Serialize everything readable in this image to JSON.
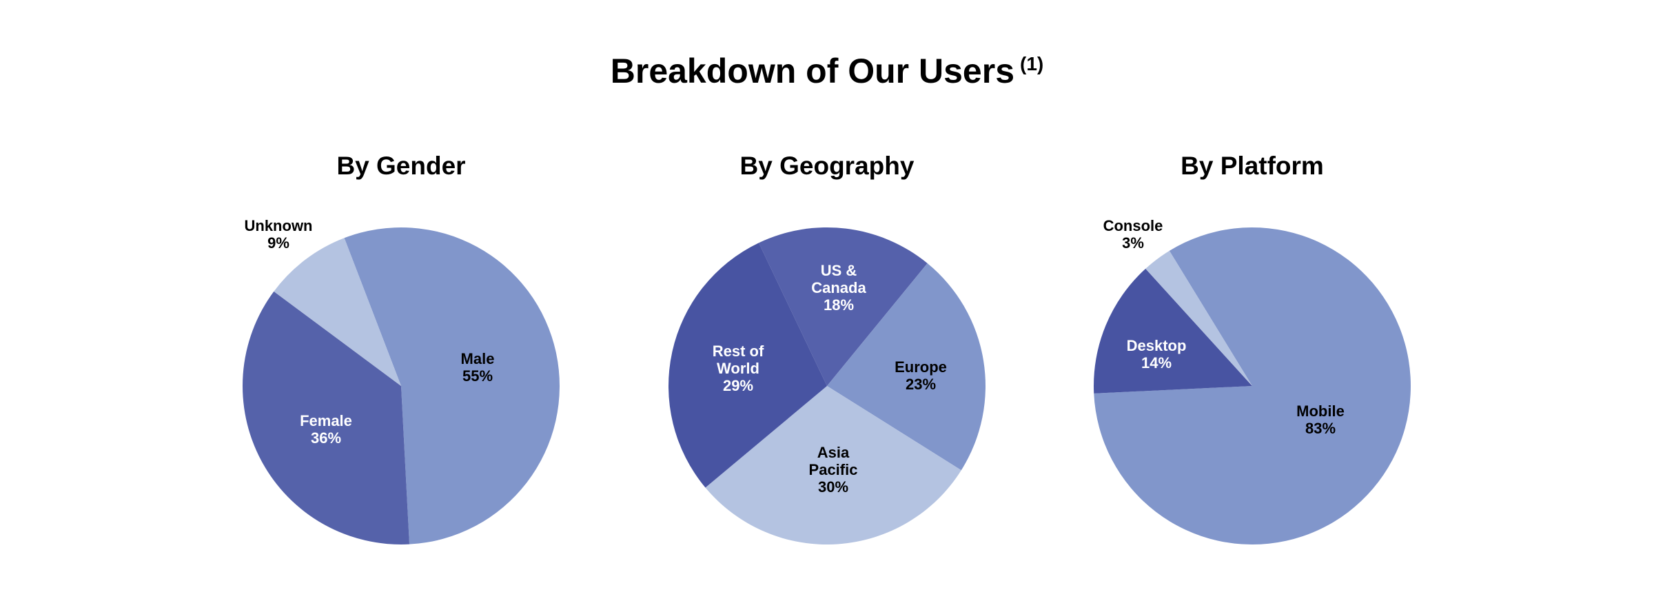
{
  "title": "Breakdown of Our Users",
  "title_note": "(1)",
  "chart_data": [
    {
      "type": "pie",
      "title": "By Gender",
      "slices": [
        {
          "label": [
            "Male"
          ],
          "value": 55,
          "display": "55%",
          "color": "#8196cb",
          "text_color": "#000000"
        },
        {
          "label": [
            "Female"
          ],
          "value": 36,
          "display": "36%",
          "color": "#5562aa",
          "text_color": "#ffffff"
        },
        {
          "label": [
            "Unknown"
          ],
          "value": 9,
          "display": "9%",
          "color": "#b4c3e1",
          "text_color": "#000000"
        }
      ]
    },
    {
      "type": "pie",
      "title": "By Geography",
      "slices": [
        {
          "label": [
            "US &",
            "Canada"
          ],
          "value": 18,
          "display": "18%",
          "color": "#5561ab",
          "text_color": "#ffffff"
        },
        {
          "label": [
            "Europe"
          ],
          "value": 23,
          "display": "23%",
          "color": "#8196cb",
          "text_color": "#000000"
        },
        {
          "label": [
            "Asia",
            "Pacific"
          ],
          "value": 30,
          "display": "30%",
          "color": "#b4c3e1",
          "text_color": "#000000"
        },
        {
          "label": [
            "Rest of",
            "World"
          ],
          "value": 29,
          "display": "29%",
          "color": "#4854a2",
          "text_color": "#ffffff"
        }
      ]
    },
    {
      "type": "pie",
      "title": "By Platform",
      "slices": [
        {
          "label": [
            "Mobile"
          ],
          "value": 83,
          "display": "83%",
          "color": "#8196cb",
          "text_color": "#000000"
        },
        {
          "label": [
            "Desktop"
          ],
          "value": 14,
          "display": "14%",
          "color": "#4854a2",
          "text_color": "#ffffff"
        },
        {
          "label": [
            "Console"
          ],
          "value": 3,
          "display": "3%",
          "color": "#b4c3e1",
          "text_color": "#000000"
        }
      ]
    }
  ]
}
